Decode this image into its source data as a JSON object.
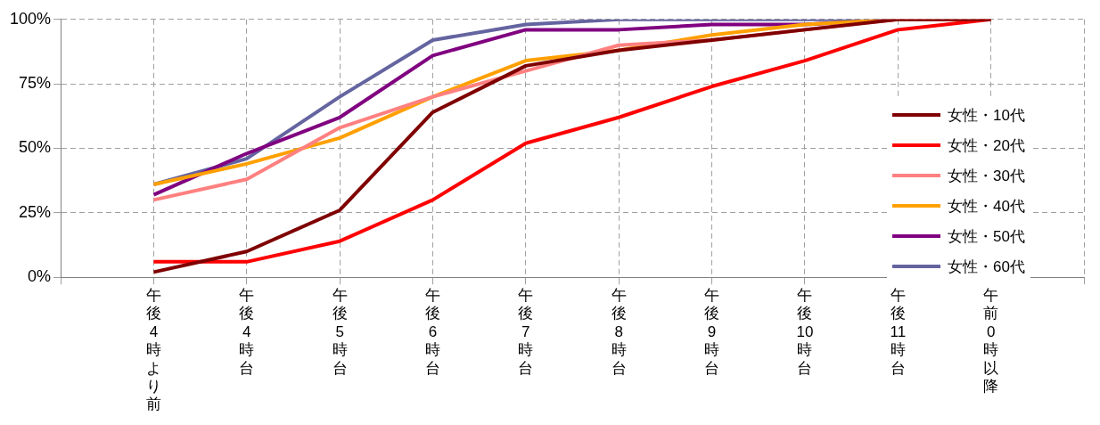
{
  "chart_data": {
    "type": "line",
    "categories": [
      null,
      "午後4時より前",
      "午後4時台",
      "午後5時台",
      "午後6時台",
      "午後7時台",
      "午後8時台",
      "午後9時台",
      "午後10時台",
      "午後11時台",
      "午前0時以降",
      null
    ],
    "series": [
      {
        "name": "女性・10代",
        "color": "#7f0000",
        "values": [
          null,
          2,
          10,
          26,
          64,
          82,
          88,
          92,
          96,
          100,
          100,
          null
        ]
      },
      {
        "name": "女性・20代",
        "color": "#ff0000",
        "values": [
          null,
          6,
          6,
          14,
          30,
          52,
          62,
          74,
          84,
          96,
          100,
          null
        ]
      },
      {
        "name": "女性・30代",
        "color": "#ff8080",
        "values": [
          null,
          30,
          38,
          58,
          70,
          80,
          90,
          92,
          96,
          100,
          100,
          null
        ]
      },
      {
        "name": "女性・40代",
        "color": "#ffa000",
        "values": [
          null,
          36,
          44,
          54,
          70,
          84,
          88,
          94,
          98,
          100,
          100,
          null
        ]
      },
      {
        "name": "女性・50代",
        "color": "#800080",
        "values": [
          null,
          32,
          48,
          62,
          86,
          96,
          96,
          98,
          98,
          100,
          100,
          null
        ]
      },
      {
        "name": "女性・60代",
        "color": "#6464a0",
        "values": [
          null,
          36,
          46,
          70,
          92,
          98,
          100,
          100,
          100,
          100,
          100,
          null
        ]
      }
    ],
    "ylim": [
      0,
      100
    ],
    "yticks": [
      {
        "value": 0,
        "label": "0%"
      },
      {
        "value": 25,
        "label": "25%"
      },
      {
        "value": 50,
        "label": "50%"
      },
      {
        "value": 75,
        "label": "75%"
      },
      {
        "value": 100,
        "label": "100%"
      }
    ],
    "grid": true,
    "legend": "right",
    "marker": "none",
    "line_style": "solid"
  }
}
